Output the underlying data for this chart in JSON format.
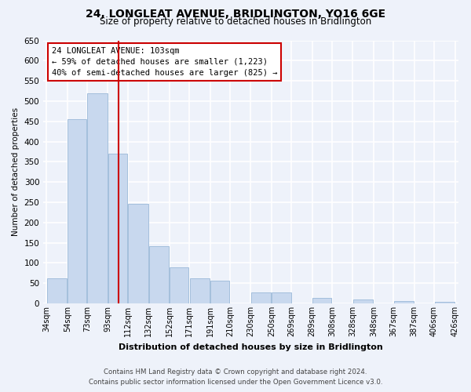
{
  "title": "24, LONGLEAT AVENUE, BRIDLINGTON, YO16 6GE",
  "subtitle": "Size of property relative to detached houses in Bridlington",
  "xlabel": "Distribution of detached houses by size in Bridlington",
  "ylabel": "Number of detached properties",
  "bar_color": "#c8d8ee",
  "bar_edge_color": "#9ab8d8",
  "vline_x": 103,
  "vline_color": "#cc0000",
  "annotation_title": "24 LONGLEAT AVENUE: 103sqm",
  "annotation_line1": "← 59% of detached houses are smaller (1,223)",
  "annotation_line2": "40% of semi-detached houses are larger (825) →",
  "annotation_box_color": "#ffffff",
  "annotation_box_edge": "#cc0000",
  "bin_edges": [
    34,
    54,
    73,
    93,
    112,
    132,
    152,
    171,
    191,
    210,
    230,
    250,
    269,
    289,
    308,
    328,
    348,
    367,
    387,
    406,
    426
  ],
  "bin_heights": [
    62,
    455,
    519,
    370,
    246,
    141,
    89,
    62,
    57,
    0,
    27,
    28,
    0,
    13,
    0,
    9,
    0,
    5,
    0,
    3
  ],
  "ylim": [
    0,
    650
  ],
  "yticks": [
    0,
    50,
    100,
    150,
    200,
    250,
    300,
    350,
    400,
    450,
    500,
    550,
    600,
    650
  ],
  "footnote1": "Contains HM Land Registry data © Crown copyright and database right 2024.",
  "footnote2": "Contains public sector information licensed under the Open Government Licence v3.0.",
  "background_color": "#eef2fa",
  "grid_color": "#ffffff"
}
